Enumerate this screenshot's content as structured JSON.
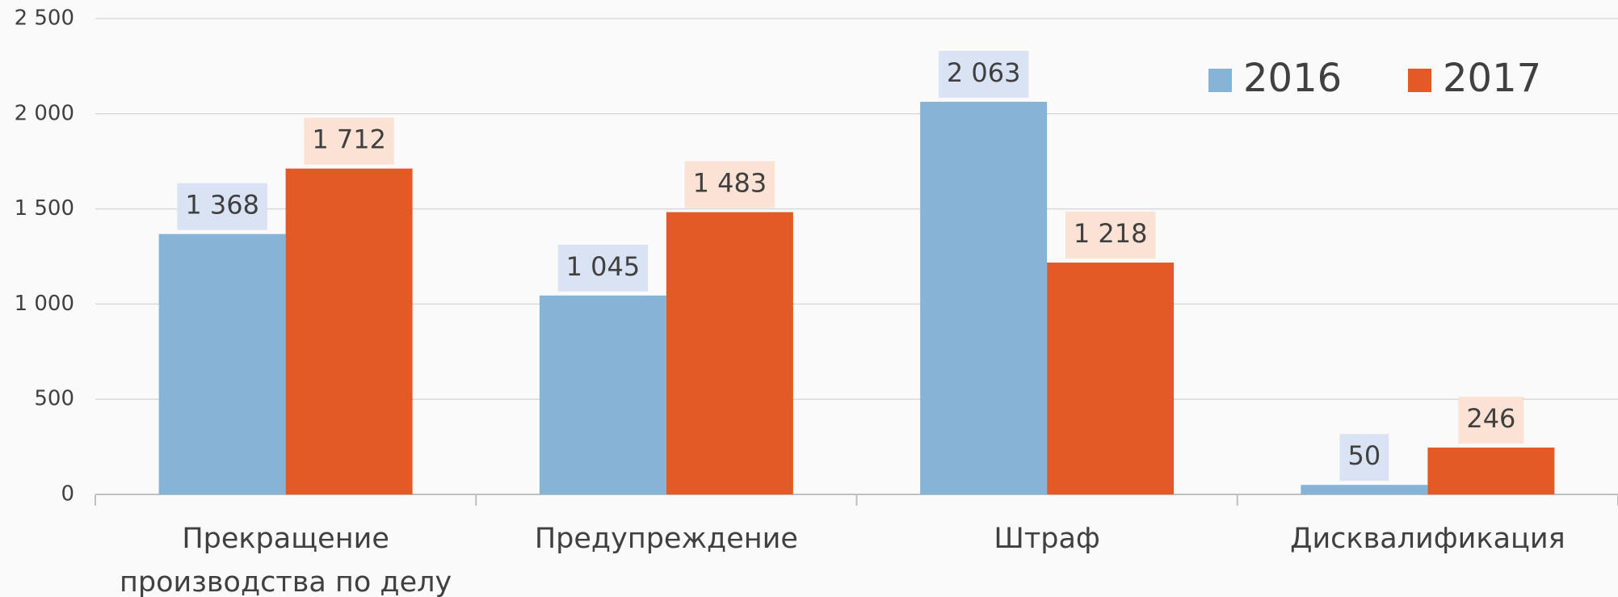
{
  "chart_data": {
    "type": "bar",
    "categories": [
      "Прекращение производства по делу",
      "Предупреждение",
      "Штраф",
      "Дисквалификация"
    ],
    "series": [
      {
        "name": "2016",
        "color": "#87b3d7",
        "label_bg": "#dae3f3",
        "values": [
          1368,
          1045,
          2063,
          50
        ],
        "value_labels": [
          "1 368",
          "1 045",
          "2 063",
          "50"
        ]
      },
      {
        "name": "2017",
        "color": "#e35a27",
        "label_bg": "#fbe2d5",
        "values": [
          1712,
          1483,
          1218,
          246
        ],
        "value_labels": [
          "1 712",
          "1 483",
          "1 218",
          "246"
        ]
      }
    ],
    "ylim": [
      0,
      2500
    ],
    "yticks": [
      0,
      500,
      {
        "value": 1000,
        "label": "1 000"
      },
      {
        "value": 1500,
        "label": "1 500"
      },
      {
        "value": 2000,
        "label": "2 000"
      },
      {
        "value": 2500,
        "label": "2 500"
      }
    ],
    "grid": true,
    "legend": "upper right"
  }
}
